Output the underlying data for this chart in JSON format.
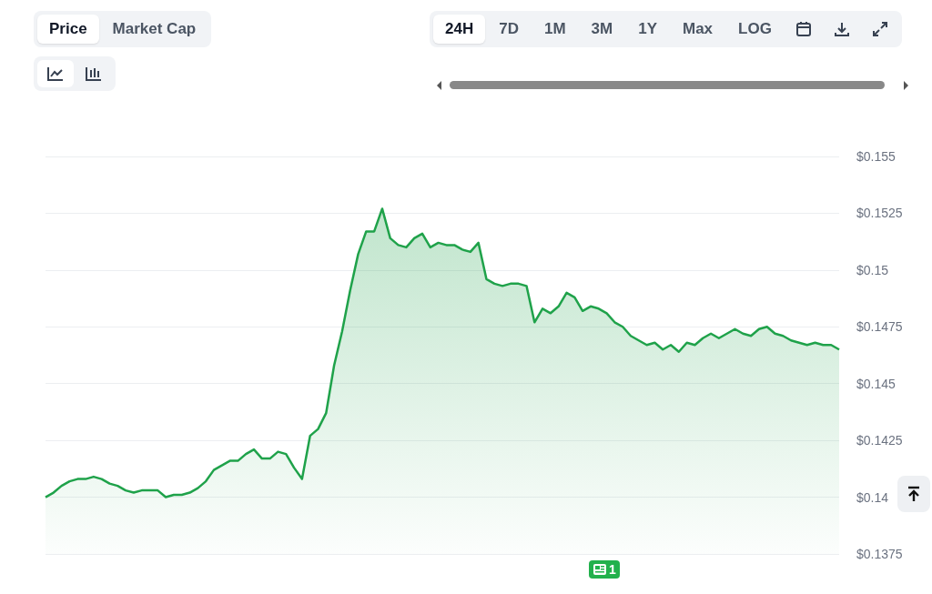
{
  "chart_data": {
    "type": "area",
    "categories": [
      null,
      null,
      null,
      null,
      null,
      null,
      null,
      null,
      null,
      null,
      null,
      null,
      null,
      null,
      null,
      null,
      null,
      null,
      null,
      null,
      null,
      null,
      null,
      null,
      null,
      null,
      null,
      null,
      null,
      null,
      null,
      null,
      null,
      null,
      null,
      null,
      null,
      null,
      null,
      null,
      null,
      null,
      null,
      null,
      null,
      null,
      null,
      null,
      null,
      null,
      null,
      null,
      null,
      null,
      null,
      null,
      null,
      null,
      null,
      null,
      null,
      null,
      null,
      null,
      null,
      null,
      null,
      null,
      null,
      null,
      null,
      null,
      null,
      null,
      null,
      null,
      null,
      null,
      null,
      null,
      null,
      null,
      null,
      null,
      null,
      null,
      null,
      null,
      null,
      null,
      null,
      null,
      null,
      null,
      null,
      null,
      null,
      null,
      null,
      null
    ],
    "series": [
      {
        "color": "#1fa24a",
        "values": [
          0.14,
          0.1402,
          0.1405,
          0.1407,
          0.1408,
          0.1408,
          0.1409,
          0.1408,
          0.1406,
          0.1405,
          0.1403,
          0.1402,
          0.1403,
          0.1403,
          0.1403,
          0.14,
          0.1401,
          0.1401,
          0.1402,
          0.1404,
          0.1407,
          0.1412,
          0.1414,
          0.1416,
          0.1416,
          0.1419,
          0.1421,
          0.1417,
          0.1417,
          0.142,
          0.1419,
          0.1413,
          0.1408,
          0.1427,
          0.143,
          0.1437,
          0.1458,
          0.1473,
          0.1491,
          0.1507,
          0.1517,
          0.1517,
          0.1527,
          0.1514,
          0.1511,
          0.151,
          0.1514,
          0.1516,
          0.151,
          0.1512,
          0.1511,
          0.1511,
          0.1509,
          0.1508,
          0.1512,
          0.1496,
          0.1494,
          0.1493,
          0.1494,
          0.1494,
          0.1493,
          0.1477,
          0.1483,
          0.1481,
          0.1484,
          0.149,
          0.1488,
          0.1482,
          0.1484,
          0.1483,
          0.1481,
          0.1477,
          0.1475,
          0.1471,
          0.1469,
          0.1467,
          0.1468,
          0.1465,
          0.1467,
          0.1464,
          0.1468,
          0.1467,
          0.147,
          0.1472,
          0.147,
          0.1472,
          0.1474,
          0.1472,
          0.1471,
          0.1474,
          0.1475,
          0.1472,
          0.1471,
          0.1469,
          0.1468,
          0.1467,
          0.1468,
          0.1467,
          0.1467,
          0.1465
        ]
      }
    ],
    "ylim": [
      0.1375,
      0.155
    ],
    "yticks": [
      {
        "value": 0.1375,
        "label": "$0.1375"
      },
      {
        "value": 0.14,
        "label": "$0.14"
      },
      {
        "value": 0.1425,
        "label": "$0.1425"
      },
      {
        "value": 0.145,
        "label": "$0.145"
      },
      {
        "value": 0.1475,
        "label": "$0.1475"
      },
      {
        "value": 0.15,
        "label": "$0.15"
      },
      {
        "value": 0.1525,
        "label": "$0.1525"
      },
      {
        "value": 0.155,
        "label": "$0.155"
      }
    ],
    "grid": "y",
    "line_style": "solid",
    "tick_labels": "y",
    "annotations": [
      "Price",
      "Market Cap",
      "24H",
      "7D",
      "1M",
      "3M",
      "1Y",
      "Max",
      "LOG",
      "1"
    ]
  }
}
